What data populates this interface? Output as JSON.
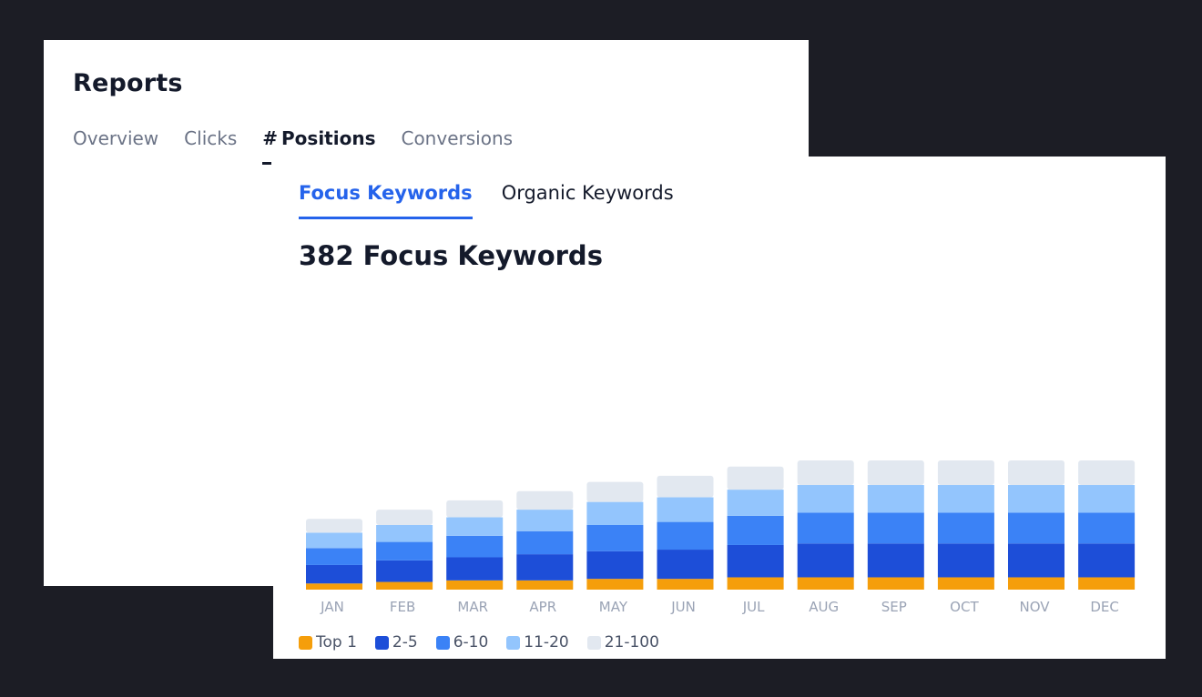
{
  "reports": {
    "title": "Reports",
    "tabs": [
      {
        "label": "Overview"
      },
      {
        "label": "Clicks"
      },
      {
        "label": "Positions",
        "icon": "#"
      },
      {
        "label": "Conversions"
      }
    ],
    "active_tab": "Positions"
  },
  "keywords": {
    "tabs": [
      {
        "label": "Focus Keywords"
      },
      {
        "label": "Organic Keywords"
      }
    ],
    "active_tab": "Focus Keywords",
    "count_title": "382 Focus Keywords"
  },
  "chart_data": {
    "type": "bar",
    "stacked": true,
    "categories": [
      "JAN",
      "FEB",
      "MAR",
      "APR",
      "MAY",
      "JUN",
      "JUL",
      "AUG",
      "SEP",
      "OCT",
      "NOV",
      "DEC"
    ],
    "series": [
      {
        "name": "Top 1",
        "color": "#f59e0b",
        "values": [
          8,
          10,
          12,
          12,
          14,
          14,
          16,
          16,
          16,
          16,
          16,
          16
        ]
      },
      {
        "name": "2-5",
        "color": "#1d4ed8",
        "values": [
          24,
          28,
          30,
          34,
          36,
          38,
          42,
          44,
          44,
          44,
          44,
          44
        ]
      },
      {
        "name": "6-10",
        "color": "#3b82f6",
        "values": [
          22,
          24,
          28,
          30,
          34,
          36,
          38,
          40,
          40,
          40,
          40,
          40
        ]
      },
      {
        "name": "11-20",
        "color": "#93c5fd",
        "values": [
          20,
          22,
          24,
          28,
          30,
          32,
          34,
          36,
          36,
          36,
          36,
          36
        ]
      },
      {
        "name": "21-100",
        "color": "#e2e8f0",
        "values": [
          18,
          20,
          22,
          24,
          26,
          28,
          30,
          32,
          32,
          32,
          32,
          32
        ]
      }
    ],
    "ylim": [
      0,
      220
    ],
    "grid": false,
    "legend_position": "bottom-left"
  }
}
